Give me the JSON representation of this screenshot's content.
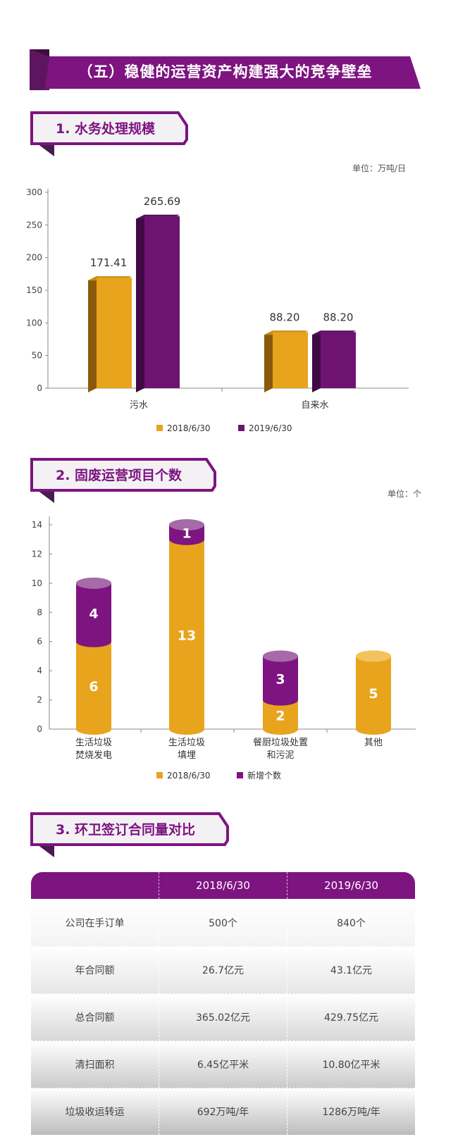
{
  "banner": {
    "title": "（五）稳健的运营资产构建强大的竞争壁垒"
  },
  "colors": {
    "purple": "#7d1480",
    "gold": "#e8a41c",
    "dark_purple": "#5e1560"
  },
  "sections": [
    {
      "title": "1. 水务处理规模",
      "unit": "单位：万吨/日"
    },
    {
      "title": "2. 固废运营项目个数",
      "unit": "单位：个"
    },
    {
      "title": "3. 环卫签订合同量对比"
    }
  ],
  "chart_data": [
    {
      "type": "bar",
      "categories": [
        "污水",
        "自来水"
      ],
      "series": [
        {
          "name": "2018/6/30",
          "values": [
            171.41,
            88.2
          ],
          "labels": [
            "171.41",
            "88.20"
          ]
        },
        {
          "name": "2019/6/30",
          "values": [
            265.69,
            88.2
          ],
          "labels": [
            "265.69",
            "88.20"
          ]
        }
      ],
      "ylim": [
        0,
        300
      ],
      "yticks": [
        "0",
        "50",
        "100",
        "150",
        "200",
        "250",
        "300"
      ],
      "legend": "bottom",
      "grid": false
    },
    {
      "type": "bar",
      "stacked": true,
      "categories": [
        "生活垃圾\n焚烧发电",
        "生活垃圾\n填埋",
        "餐厨垃圾处置\n和污泥",
        "其他"
      ],
      "series": [
        {
          "name": "2018/6/30",
          "values": [
            6,
            13,
            2,
            5
          ]
        },
        {
          "name": "新增个数",
          "values": [
            4,
            1,
            3,
            0
          ]
        }
      ],
      "ylim": [
        0,
        14
      ],
      "yticks": [
        "0",
        "2",
        "4",
        "6",
        "8",
        "10",
        "12",
        "14"
      ],
      "legend": "bottom",
      "grid": false
    }
  ],
  "table": {
    "headers": [
      "",
      "2018/6/30",
      "2019/6/30"
    ],
    "rows": [
      [
        "公司在手订单",
        "500个",
        "840个"
      ],
      [
        "年合同额",
        "26.7亿元",
        "43.1亿元"
      ],
      [
        "总合同额",
        "365.02亿元",
        "429.75亿元"
      ],
      [
        "清扫面积",
        "6.45亿平米",
        "10.80亿平米"
      ],
      [
        "垃圾收运转运",
        "692万吨/年",
        "1286万吨/年"
      ]
    ]
  }
}
